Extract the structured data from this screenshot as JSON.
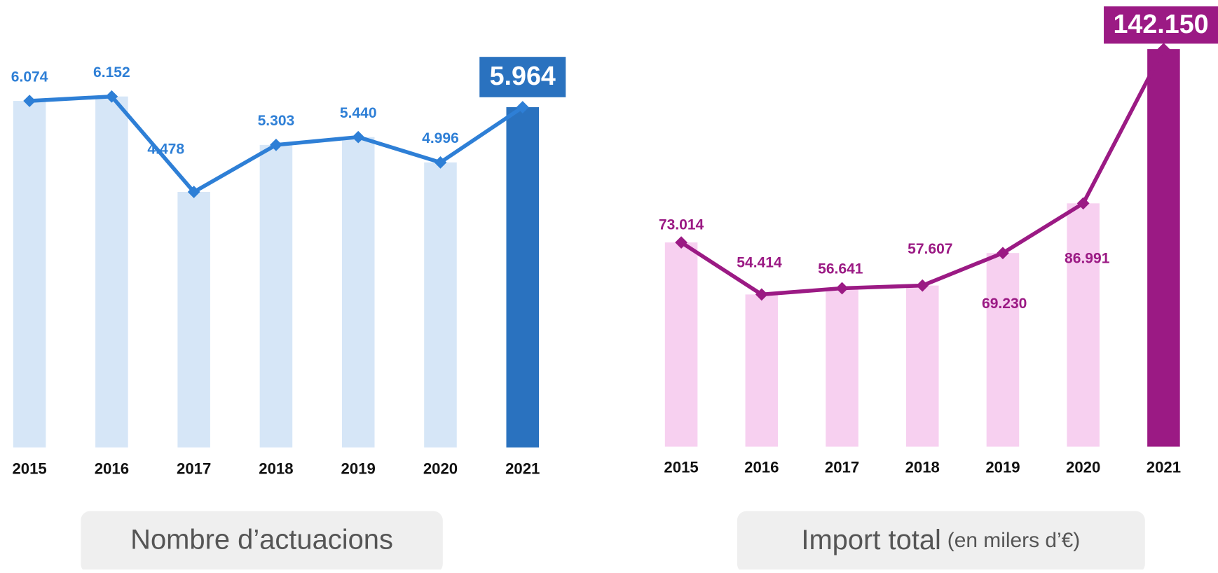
{
  "chart_data": [
    {
      "type": "bar",
      "title": "Nombre d’actuacions",
      "categories": [
        "2015",
        "2016",
        "2017",
        "2018",
        "2019",
        "2020",
        "2021"
      ],
      "values": [
        6074,
        6152,
        4478,
        5303,
        5440,
        4996,
        5964
      ],
      "value_labels": [
        "6.074",
        "6.152",
        "4.478",
        "5.303",
        "5.440",
        "4.996",
        "5.964"
      ],
      "color": "#2e7fd6",
      "bar_color": "#d6e6f7",
      "highlight_color": "#2a72bf"
    },
    {
      "type": "bar",
      "title": "Import total",
      "subtitle": "(en milers d’€)",
      "categories": [
        "2015",
        "2016",
        "2017",
        "2018",
        "2019",
        "2020",
        "2021"
      ],
      "values": [
        73014,
        54414,
        56641,
        57607,
        69230,
        86991,
        142150
      ],
      "value_labels": [
        "73.014",
        "54.414",
        "56.641",
        "57.607",
        "69.230",
        "86.991",
        "142.150"
      ],
      "color": "#9b1a84",
      "bar_color": "#f7d0f0",
      "highlight_color": "#9b1a84"
    }
  ]
}
